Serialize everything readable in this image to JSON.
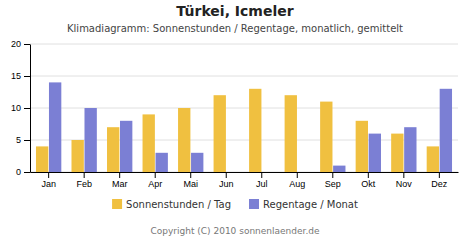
{
  "chart_data": {
    "type": "bar",
    "title": "Türkei, Icmeler",
    "subtitle": "Klimadiagramm: Sonnenstunden / Regentage, monatlich, gemittelt",
    "categories": [
      "Jan",
      "Feb",
      "Mar",
      "Apr",
      "Mai",
      "Jun",
      "Jul",
      "Aug",
      "Sep",
      "Okt",
      "Nov",
      "Dez"
    ],
    "series": [
      {
        "name": "Sonnenstunden / Tag",
        "color": "#f0c040",
        "values": [
          4,
          5,
          7,
          9,
          10,
          12,
          13,
          12,
          11,
          8,
          6,
          4
        ]
      },
      {
        "name": "Regentage / Monat",
        "color": "#7b7fd4",
        "values": [
          14,
          10,
          8,
          3,
          3,
          0,
          0,
          0,
          1,
          6,
          7,
          13
        ]
      }
    ],
    "ylim": [
      0,
      20
    ],
    "yticks": [
      0,
      5,
      10,
      15,
      20
    ],
    "grid": true,
    "legend": "bottom",
    "annotations": [
      "Copyright (C) 2010 sonnenlaender.de"
    ]
  }
}
